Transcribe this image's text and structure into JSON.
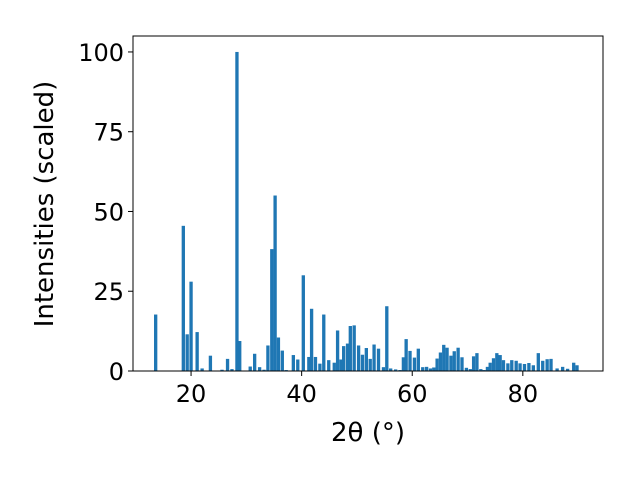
{
  "chart_data": {
    "type": "bar",
    "xlabel": "2θ (°)",
    "ylabel": "Intensities (scaled)",
    "xlim": [
      9.5,
      94.5
    ],
    "ylim": [
      0,
      105
    ],
    "xticks": [
      20,
      40,
      60,
      80
    ],
    "yticks": [
      0,
      25,
      50,
      75,
      100
    ],
    "grid": false,
    "bar_width": 0.6,
    "color": "#1f77b4",
    "x": [
      13.6,
      18.6,
      19.3,
      20.0,
      21.1,
      22.0,
      23.5,
      25.6,
      26.6,
      27.4,
      28.3,
      28.8,
      30.7,
      31.5,
      32.4,
      33.2,
      33.9,
      34.6,
      35.2,
      35.8,
      36.5,
      37.2,
      38.5,
      39.3,
      40.3,
      41.3,
      41.8,
      42.5,
      43.3,
      44.0,
      44.9,
      45.9,
      46.5,
      47.1,
      47.6,
      48.3,
      48.8,
      49.5,
      50.3,
      51.0,
      51.7,
      52.4,
      53.1,
      53.9,
      54.8,
      55.4,
      56.1,
      57.0,
      57.8,
      58.4,
      58.9,
      59.6,
      60.4,
      61.1,
      61.9,
      62.6,
      63.3,
      63.9,
      64.5,
      65.1,
      65.7,
      66.3,
      67.0,
      67.6,
      68.3,
      69.0,
      69.8,
      70.5,
      71.1,
      71.7,
      72.4,
      73.0,
      73.6,
      74.1,
      74.7,
      75.3,
      75.9,
      76.5,
      77.3,
      78.0,
      78.8,
      79.5,
      80.3,
      81.1,
      81.9,
      82.8,
      83.6,
      84.4,
      85.1,
      86.2,
      87.2,
      88.1,
      89.2,
      89.8
    ],
    "values": [
      17.7,
      45.5,
      11.5,
      28.0,
      12.2,
      0.8,
      4.8,
      0.4,
      3.8,
      0.6,
      100.0,
      9.4,
      1.4,
      5.4,
      1.2,
      0.4,
      8.0,
      38.2,
      55.0,
      10.5,
      6.4,
      0.3,
      5.0,
      3.6,
      30.0,
      4.4,
      19.5,
      4.4,
      2.3,
      17.7,
      3.4,
      2.6,
      12.7,
      3.6,
      7.8,
      8.6,
      14.1,
      14.3,
      8.0,
      5.1,
      7.2,
      3.8,
      8.3,
      7.0,
      1.2,
      20.3,
      0.8,
      0.5,
      0.3,
      4.3,
      10.0,
      6.3,
      4.2,
      7.0,
      1.2,
      1.3,
      0.8,
      1.1,
      3.9,
      5.8,
      8.2,
      7.3,
      4.8,
      6.2,
      7.3,
      4.3,
      1.0,
      0.6,
      4.6,
      5.6,
      0.6,
      0.3,
      1.3,
      2.6,
      4.0,
      5.6,
      5.0,
      3.4,
      2.4,
      3.4,
      3.2,
      2.4,
      2.2,
      2.5,
      1.8,
      5.6,
      3.2,
      3.7,
      3.8,
      0.8,
      1.3,
      0.7,
      2.6,
      1.8
    ]
  }
}
